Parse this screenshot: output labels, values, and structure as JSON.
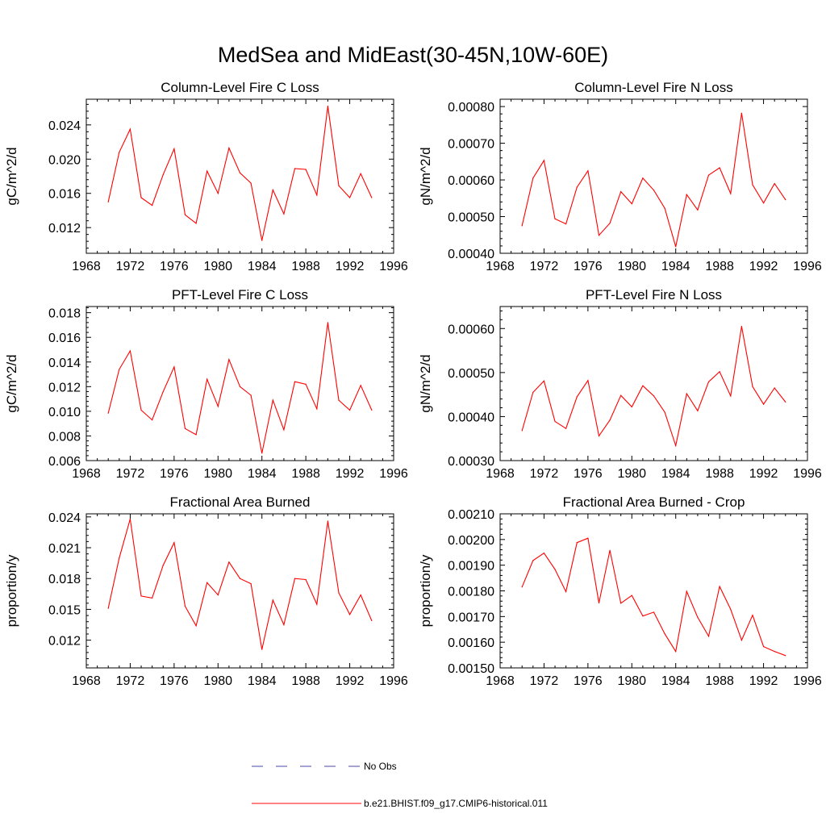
{
  "page": {
    "title": "MedSea and MidEast(30-45N,10W-60E)"
  },
  "colors": {
    "model_line": "#ff0000",
    "obs_line": "#4a4aa8",
    "axis": "#000000"
  },
  "legend": {
    "placement": "bottom-center",
    "items": [
      {
        "label": "No Obs",
        "style": "dashed",
        "color": "#4a4aa8"
      },
      {
        "label": "b.e21.BHIST.f09_g17.CMIP6-historical.011",
        "style": "solid",
        "color": "#ff0000"
      }
    ]
  },
  "chart_data": [
    {
      "type": "line",
      "title": "Column-Level Fire C Loss",
      "xlabel": "",
      "ylabel": "gC/m^2/d",
      "xlim": [
        1968,
        1996
      ],
      "ylim": [
        0.009,
        0.027
      ],
      "xticks": [
        1968,
        1972,
        1976,
        1980,
        1984,
        1988,
        1992,
        1996
      ],
      "yticks": [
        0.012,
        0.016,
        0.02,
        0.024
      ],
      "ytick_labels": [
        "0.012",
        "0.016",
        "0.020",
        "0.024"
      ],
      "grid": false,
      "x": [
        1970,
        1971,
        1972,
        1973,
        1974,
        1975,
        1976,
        1977,
        1978,
        1979,
        1980,
        1981,
        1982,
        1983,
        1984,
        1985,
        1986,
        1987,
        1988,
        1989,
        1990,
        1991,
        1992,
        1993,
        1994
      ],
      "series": [
        {
          "name": "b.e21.BHIST.f09_g17.CMIP6-historical.011",
          "values": [
            0.015,
            0.0208,
            0.0235,
            0.0155,
            0.0146,
            0.0182,
            0.0212,
            0.0135,
            0.0125,
            0.0186,
            0.016,
            0.0213,
            0.0184,
            0.0172,
            0.0105,
            0.0164,
            0.0136,
            0.0189,
            0.0188,
            0.0158,
            0.0262,
            0.0169,
            0.0155,
            0.0183,
            0.0155
          ]
        }
      ]
    },
    {
      "type": "line",
      "title": "Column-Level Fire N Loss",
      "xlabel": "",
      "ylabel": "gN/m^2/d",
      "xlim": [
        1968,
        1996
      ],
      "ylim": [
        0.0004,
        0.00082
      ],
      "xticks": [
        1968,
        1972,
        1976,
        1980,
        1984,
        1988,
        1992,
        1996
      ],
      "yticks": [
        0.0004,
        0.0005,
        0.0006,
        0.0007,
        0.0008
      ],
      "ytick_labels": [
        "0.00040",
        "0.00050",
        "0.00060",
        "0.00070",
        "0.00080"
      ],
      "grid": false,
      "x": [
        1970,
        1971,
        1972,
        1973,
        1974,
        1975,
        1976,
        1977,
        1978,
        1979,
        1980,
        1981,
        1982,
        1983,
        1984,
        1985,
        1986,
        1987,
        1988,
        1989,
        1990,
        1991,
        1992,
        1993,
        1994
      ],
      "series": [
        {
          "name": "b.e21.BHIST.f09_g17.CMIP6-historical.011",
          "values": [
            0.000475,
            0.000605,
            0.000653,
            0.000494,
            0.00048,
            0.00058,
            0.000625,
            0.000449,
            0.000482,
            0.000568,
            0.000535,
            0.000605,
            0.000572,
            0.000523,
            0.000418,
            0.00056,
            0.000518,
            0.000613,
            0.000633,
            0.000563,
            0.000782,
            0.000587,
            0.000537,
            0.00059,
            0.000546
          ]
        }
      ]
    },
    {
      "type": "line",
      "title": "PFT-Level Fire C Loss",
      "xlabel": "",
      "ylabel": "gC/m^2/d",
      "xlim": [
        1968,
        1996
      ],
      "ylim": [
        0.006,
        0.0185
      ],
      "xticks": [
        1968,
        1972,
        1976,
        1980,
        1984,
        1988,
        1992,
        1996
      ],
      "yticks": [
        0.006,
        0.008,
        0.01,
        0.012,
        0.014,
        0.016,
        0.018
      ],
      "ytick_labels": [
        "0.006",
        "0.008",
        "0.010",
        "0.012",
        "0.014",
        "0.016",
        "0.018"
      ],
      "grid": false,
      "x": [
        1970,
        1971,
        1972,
        1973,
        1974,
        1975,
        1976,
        1977,
        1978,
        1979,
        1980,
        1981,
        1982,
        1983,
        1984,
        1985,
        1986,
        1987,
        1988,
        1989,
        1990,
        1991,
        1992,
        1993,
        1994
      ],
      "series": [
        {
          "name": "b.e21.BHIST.f09_g17.CMIP6-historical.011",
          "values": [
            0.00985,
            0.0134,
            0.0149,
            0.0101,
            0.0093,
            0.0116,
            0.0136,
            0.0086,
            0.0081,
            0.0126,
            0.0104,
            0.0142,
            0.012,
            0.0113,
            0.0066,
            0.0109,
            0.0085,
            0.0124,
            0.0122,
            0.0102,
            0.0172,
            0.0109,
            0.0101,
            0.0121,
            0.0101
          ]
        }
      ]
    },
    {
      "type": "line",
      "title": "PFT-Level Fire N Loss",
      "xlabel": "",
      "ylabel": "gN/m^2/d",
      "xlim": [
        1968,
        1996
      ],
      "ylim": [
        0.0003,
        0.00065
      ],
      "xticks": [
        1968,
        1972,
        1976,
        1980,
        1984,
        1988,
        1992,
        1996
      ],
      "yticks": [
        0.0003,
        0.0004,
        0.0005,
        0.0006
      ],
      "ytick_labels": [
        "0.00030",
        "0.00040",
        "0.00050",
        "0.00060"
      ],
      "grid": false,
      "x": [
        1970,
        1971,
        1972,
        1973,
        1974,
        1975,
        1976,
        1977,
        1978,
        1979,
        1980,
        1981,
        1982,
        1983,
        1984,
        1985,
        1986,
        1987,
        1988,
        1989,
        1990,
        1991,
        1992,
        1993,
        1994
      ],
      "series": [
        {
          "name": "b.e21.BHIST.f09_g17.CMIP6-historical.011",
          "values": [
            0.000368,
            0.000455,
            0.000481,
            0.000389,
            0.000373,
            0.000445,
            0.000482,
            0.000356,
            0.000392,
            0.000448,
            0.000422,
            0.00047,
            0.000447,
            0.00041,
            0.000334,
            0.000452,
            0.000413,
            0.000479,
            0.000502,
            0.000447,
            0.000605,
            0.000468,
            0.000428,
            0.000465,
            0.000433
          ]
        }
      ]
    },
    {
      "type": "line",
      "title": "Fractional Area Burned",
      "xlabel": "",
      "ylabel": "proportion/y",
      "xlim": [
        1968,
        1996
      ],
      "ylim": [
        0.0093,
        0.0243
      ],
      "xticks": [
        1968,
        1972,
        1976,
        1980,
        1984,
        1988,
        1992,
        1996
      ],
      "yticks": [
        0.012,
        0.015,
        0.018,
        0.021,
        0.024
      ],
      "ytick_labels": [
        "0.012",
        "0.015",
        "0.018",
        "0.021",
        "0.024"
      ],
      "grid": false,
      "x": [
        1970,
        1971,
        1972,
        1973,
        1974,
        1975,
        1976,
        1977,
        1978,
        1979,
        1980,
        1981,
        1982,
        1983,
        1984,
        1985,
        1986,
        1987,
        1988,
        1989,
        1990,
        1991,
        1992,
        1993,
        1994
      ],
      "series": [
        {
          "name": "b.e21.BHIST.f09_g17.CMIP6-historical.011",
          "values": [
            0.0151,
            0.02,
            0.0238,
            0.0163,
            0.0161,
            0.0193,
            0.0215,
            0.0153,
            0.0134,
            0.0176,
            0.0164,
            0.0196,
            0.018,
            0.0175,
            0.0111,
            0.0159,
            0.0135,
            0.018,
            0.0179,
            0.0155,
            0.0236,
            0.0166,
            0.0145,
            0.0164,
            0.0139
          ]
        }
      ]
    },
    {
      "type": "line",
      "title": "Fractional Area Burned - Crop",
      "xlabel": "",
      "ylabel": "proportion/y",
      "xlim": [
        1968,
        1996
      ],
      "ylim": [
        0.0015,
        0.0021
      ],
      "xticks": [
        1968,
        1972,
        1976,
        1980,
        1984,
        1988,
        1992,
        1996
      ],
      "yticks": [
        0.0015,
        0.0016,
        0.0017,
        0.0018,
        0.0019,
        0.002,
        0.0021
      ],
      "ytick_labels": [
        "0.00150",
        "0.00160",
        "0.00170",
        "0.00180",
        "0.00190",
        "0.00200",
        "0.00210"
      ],
      "grid": false,
      "x": [
        1970,
        1971,
        1972,
        1973,
        1974,
        1975,
        1976,
        1977,
        1978,
        1979,
        1980,
        1981,
        1982,
        1983,
        1984,
        1985,
        1986,
        1987,
        1988,
        1989,
        1990,
        1991,
        1992,
        1993,
        1994
      ],
      "series": [
        {
          "name": "b.e21.BHIST.f09_g17.CMIP6-historical.011",
          "values": [
            0.001815,
            0.001918,
            0.001947,
            0.001884,
            0.001797,
            0.001988,
            0.002005,
            0.001753,
            0.001958,
            0.001752,
            0.001782,
            0.001702,
            0.001717,
            0.001633,
            0.001564,
            0.001798,
            0.001697,
            0.001623,
            0.001817,
            0.001728,
            0.001608,
            0.001705,
            0.001583,
            0.001564,
            0.001548
          ]
        }
      ]
    }
  ]
}
